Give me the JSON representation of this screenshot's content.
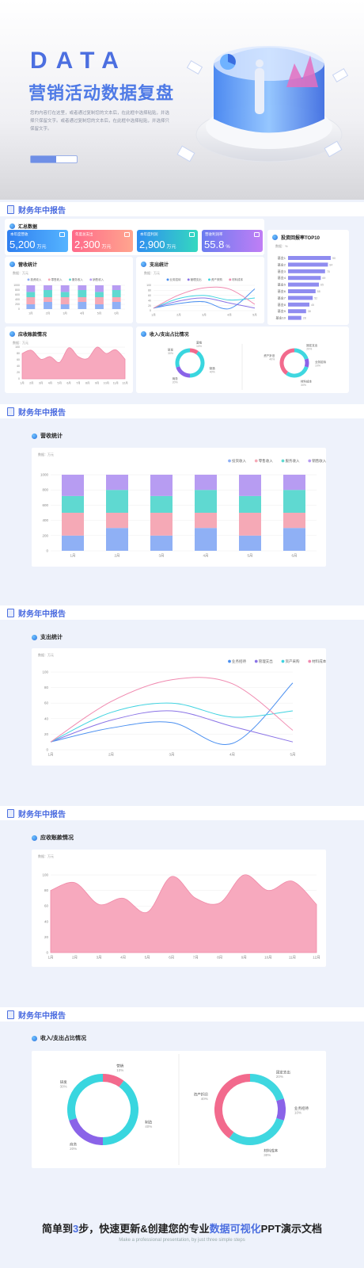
{
  "hero": {
    "word": "DATA",
    "title": "营销活动数据复盘",
    "desc": "您的内容打在这里，或者通过复制您的文本后，在此框中选择粘贴，并选择只保留文字。或者通过复制您的文本后，在此框中选择粘贴，并选择只保留文字。",
    "progress": 0.55
  },
  "section_title": "财务年中报告",
  "summary": {
    "title": "汇总数据",
    "kpis": [
      {
        "label": "本年度营收",
        "value": "5,200",
        "unit": "万元",
        "color_from": "#2f7ff0",
        "color_to": "#55b4ff"
      },
      {
        "label": "年度总支出",
        "value": "2,300",
        "unit": "万元",
        "color_from": "#ff6a8a",
        "color_to": "#ffa58e"
      },
      {
        "label": "本年度利润",
        "value": "2,900",
        "unit": "万元",
        "color_from": "#2f8ef0",
        "color_to": "#34d8c0"
      },
      {
        "label": "营收利润率",
        "value": "55.8",
        "unit": "%",
        "color_from": "#6a7cf0",
        "color_to": "#c07ef5"
      }
    ]
  },
  "top10": {
    "title": "投资回报率TOP10",
    "unit": "数据：%",
    "items": [
      {
        "name": "基金1",
        "value": 90
      },
      {
        "name": "基金2",
        "value": 84
      },
      {
        "name": "基金3",
        "value": 78
      },
      {
        "name": "基金4",
        "value": 69
      },
      {
        "name": "基金5",
        "value": 65
      },
      {
        "name": "基金6",
        "value": 58
      },
      {
        "name": "基金7",
        "value": 52
      },
      {
        "name": "基金8",
        "value": 45
      },
      {
        "name": "基金9",
        "value": 38
      },
      {
        "name": "基金10",
        "value": 28
      }
    ]
  },
  "revenue": {
    "title": "营收统计",
    "unit": "数据：万元",
    "legend": [
      "投资收入",
      "零售收入",
      "服务收入",
      "销售收入"
    ],
    "colors": [
      "#8fb0f5",
      "#f5a9b6",
      "#5fd9d1",
      "#b79cf2"
    ]
  },
  "expense": {
    "title": "支出统计",
    "unit": "数据：万元",
    "legend": [
      "业务招待",
      "管理支出",
      "资产采购",
      "材料成本"
    ],
    "colors": [
      "#4a8ff0",
      "#8a73e6",
      "#3fd3e0",
      "#f08ab0"
    ]
  },
  "receivable": {
    "title": "应收账款情况",
    "unit": "数据：万元"
  },
  "ratio": {
    "title": "收入/支出占比情况",
    "income": [
      {
        "label": "营销",
        "pct": "10%",
        "value": 10,
        "color": "#f26a8d"
      },
      {
        "label": "制造",
        "pct": "40%",
        "value": 40,
        "color": "#39d6df"
      },
      {
        "label": "商务",
        "pct": "20%",
        "value": 20,
        "color": "#8a63e8"
      },
      {
        "label": "研发",
        "pct": "30%",
        "value": 30,
        "color": "#39d6df"
      }
    ],
    "expense": [
      {
        "label": "固定支出",
        "pct": "20%",
        "value": 20,
        "color": "#3fd7e0"
      },
      {
        "label": "业务招待",
        "pct": "10%",
        "value": 10,
        "color": "#8a63e8"
      },
      {
        "label": "材料成本",
        "pct": "30%",
        "value": 30,
        "color": "#3fd7e0"
      },
      {
        "label": "资产折旧",
        "pct": "40%",
        "value": 40,
        "color": "#f26a8d"
      }
    ]
  },
  "chart_data": [
    {
      "type": "bar",
      "title": "营收统计",
      "categories": [
        "1月",
        "2月",
        "3月",
        "4月",
        "5月",
        "6月"
      ],
      "stacked": true,
      "ylim": [
        0,
        1000
      ],
      "yticks": [
        0,
        200,
        400,
        600,
        800,
        1000
      ],
      "series": [
        {
          "name": "投资收入",
          "values": [
            200,
            300,
            200,
            300,
            200,
            300
          ]
        },
        {
          "name": "零售收入",
          "values": [
            300,
            200,
            300,
            200,
            300,
            200
          ]
        },
        {
          "name": "服务收入",
          "values": [
            220,
            300,
            220,
            300,
            220,
            300
          ]
        },
        {
          "name": "销售收入",
          "values": [
            280,
            200,
            280,
            200,
            280,
            200
          ]
        }
      ]
    },
    {
      "type": "line",
      "title": "支出统计",
      "x": [
        "1月",
        "2月",
        "3月",
        "4月",
        "5月"
      ],
      "ylim": [
        0,
        100
      ],
      "yticks": [
        0,
        20,
        40,
        60,
        80,
        100
      ],
      "series": [
        {
          "name": "业务招待",
          "values": [
            10,
            28,
            35,
            8,
            86
          ]
        },
        {
          "name": "管理支出",
          "values": [
            10,
            38,
            50,
            30,
            10
          ]
        },
        {
          "name": "资产采购",
          "values": [
            10,
            48,
            60,
            42,
            50
          ]
        },
        {
          "name": "材料成本",
          "values": [
            10,
            62,
            90,
            85,
            25
          ]
        }
      ]
    },
    {
      "type": "area",
      "title": "应收账款情况",
      "x": [
        "1月",
        "2月",
        "3月",
        "4月",
        "5月",
        "6月",
        "7月",
        "8月",
        "9月",
        "10月",
        "11月",
        "12月"
      ],
      "ylim": [
        0,
        100
      ],
      "yticks": [
        0,
        20,
        40,
        60,
        80,
        100
      ],
      "values": [
        80,
        90,
        62,
        70,
        52,
        98,
        70,
        64,
        100,
        80,
        92,
        62
      ]
    }
  ],
  "footer": {
    "main_a": "简单到",
    "main_b": "3",
    "main_c": "步，快速更新&创建您的专业",
    "main_d": "数据可视化",
    "main_e": "PPT演示文档",
    "sub": "Make a professional presentation, by just three simple steps"
  }
}
